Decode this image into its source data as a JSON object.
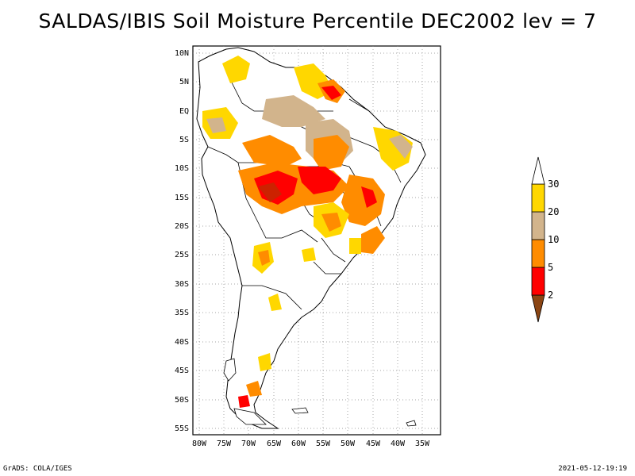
{
  "title": "SALDAS/IBIS Soil Moisture Percentile DEC2002 lev = 7",
  "footer": {
    "left": "GrADS: COLA/IGES",
    "right": "2021-05-12-19:19"
  },
  "map": {
    "region": "South America",
    "projection": "lat-lon",
    "lat_labels": [
      "10N",
      "5N",
      "EQ",
      "5S",
      "10S",
      "15S",
      "20S",
      "25S",
      "30S",
      "35S",
      "40S",
      "45S",
      "50S",
      "55S"
    ],
    "lon_labels": [
      "80W",
      "75W",
      "70W",
      "65W",
      "60W",
      "55W",
      "50W",
      "45W",
      "40W",
      "35W"
    ],
    "grid": "dotted"
  },
  "legend": {
    "type": "colorbar",
    "orientation": "vertical",
    "bins": [
      {
        "color": "#8b4513",
        "range": "<2"
      },
      {
        "color": "#ff0000",
        "range": "2-5"
      },
      {
        "color": "#ff8c00",
        "range": "5-10"
      },
      {
        "color": "#d2b48c",
        "range": "10-20"
      },
      {
        "color": "#ffd700",
        "range": "20-30"
      },
      {
        "color": "#ffffff",
        "range": ">30"
      }
    ],
    "labels": [
      "2",
      "5",
      "10",
      "20",
      "30"
    ]
  }
}
